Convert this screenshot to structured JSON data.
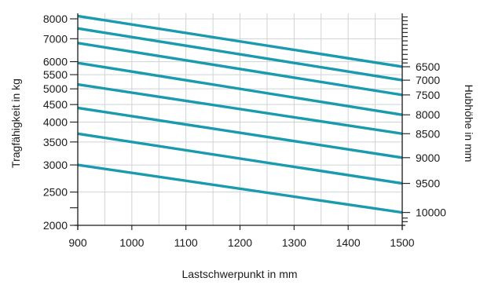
{
  "chart_data": {
    "type": "line",
    "xlabel": "Lastschwerpunkt in mm",
    "ylabel": "Tragfähigkeit in kg",
    "y2label": "Hubhöhe in mm",
    "xlim": [
      900,
      1500
    ],
    "xticks": [
      900,
      1000,
      1100,
      1200,
      1300,
      1400,
      1500
    ],
    "ylim": [
      2000,
      8300
    ],
    "y_scale": "log",
    "yticks": [
      2000,
      2500,
      3000,
      3500,
      4000,
      4500,
      5000,
      5500,
      6000,
      7000,
      8000
    ],
    "right_tick_labels": [
      "6500",
      "7000",
      "7500",
      "8000",
      "8500",
      "9000",
      "9500",
      "10000"
    ],
    "grid": true,
    "line_color": "#1a9aae",
    "x": [
      900,
      1500
    ],
    "series": [
      {
        "values": [
          8150,
          5800
        ]
      },
      {
        "values": [
          7500,
          5300
        ]
      },
      {
        "values": [
          6800,
          4800
        ]
      },
      {
        "values": [
          5950,
          4200
        ]
      },
      {
        "values": [
          5150,
          3700
        ]
      },
      {
        "values": [
          4400,
          3150
        ]
      },
      {
        "values": [
          3700,
          2650
        ]
      },
      {
        "values": [
          3000,
          2180
        ]
      }
    ]
  }
}
